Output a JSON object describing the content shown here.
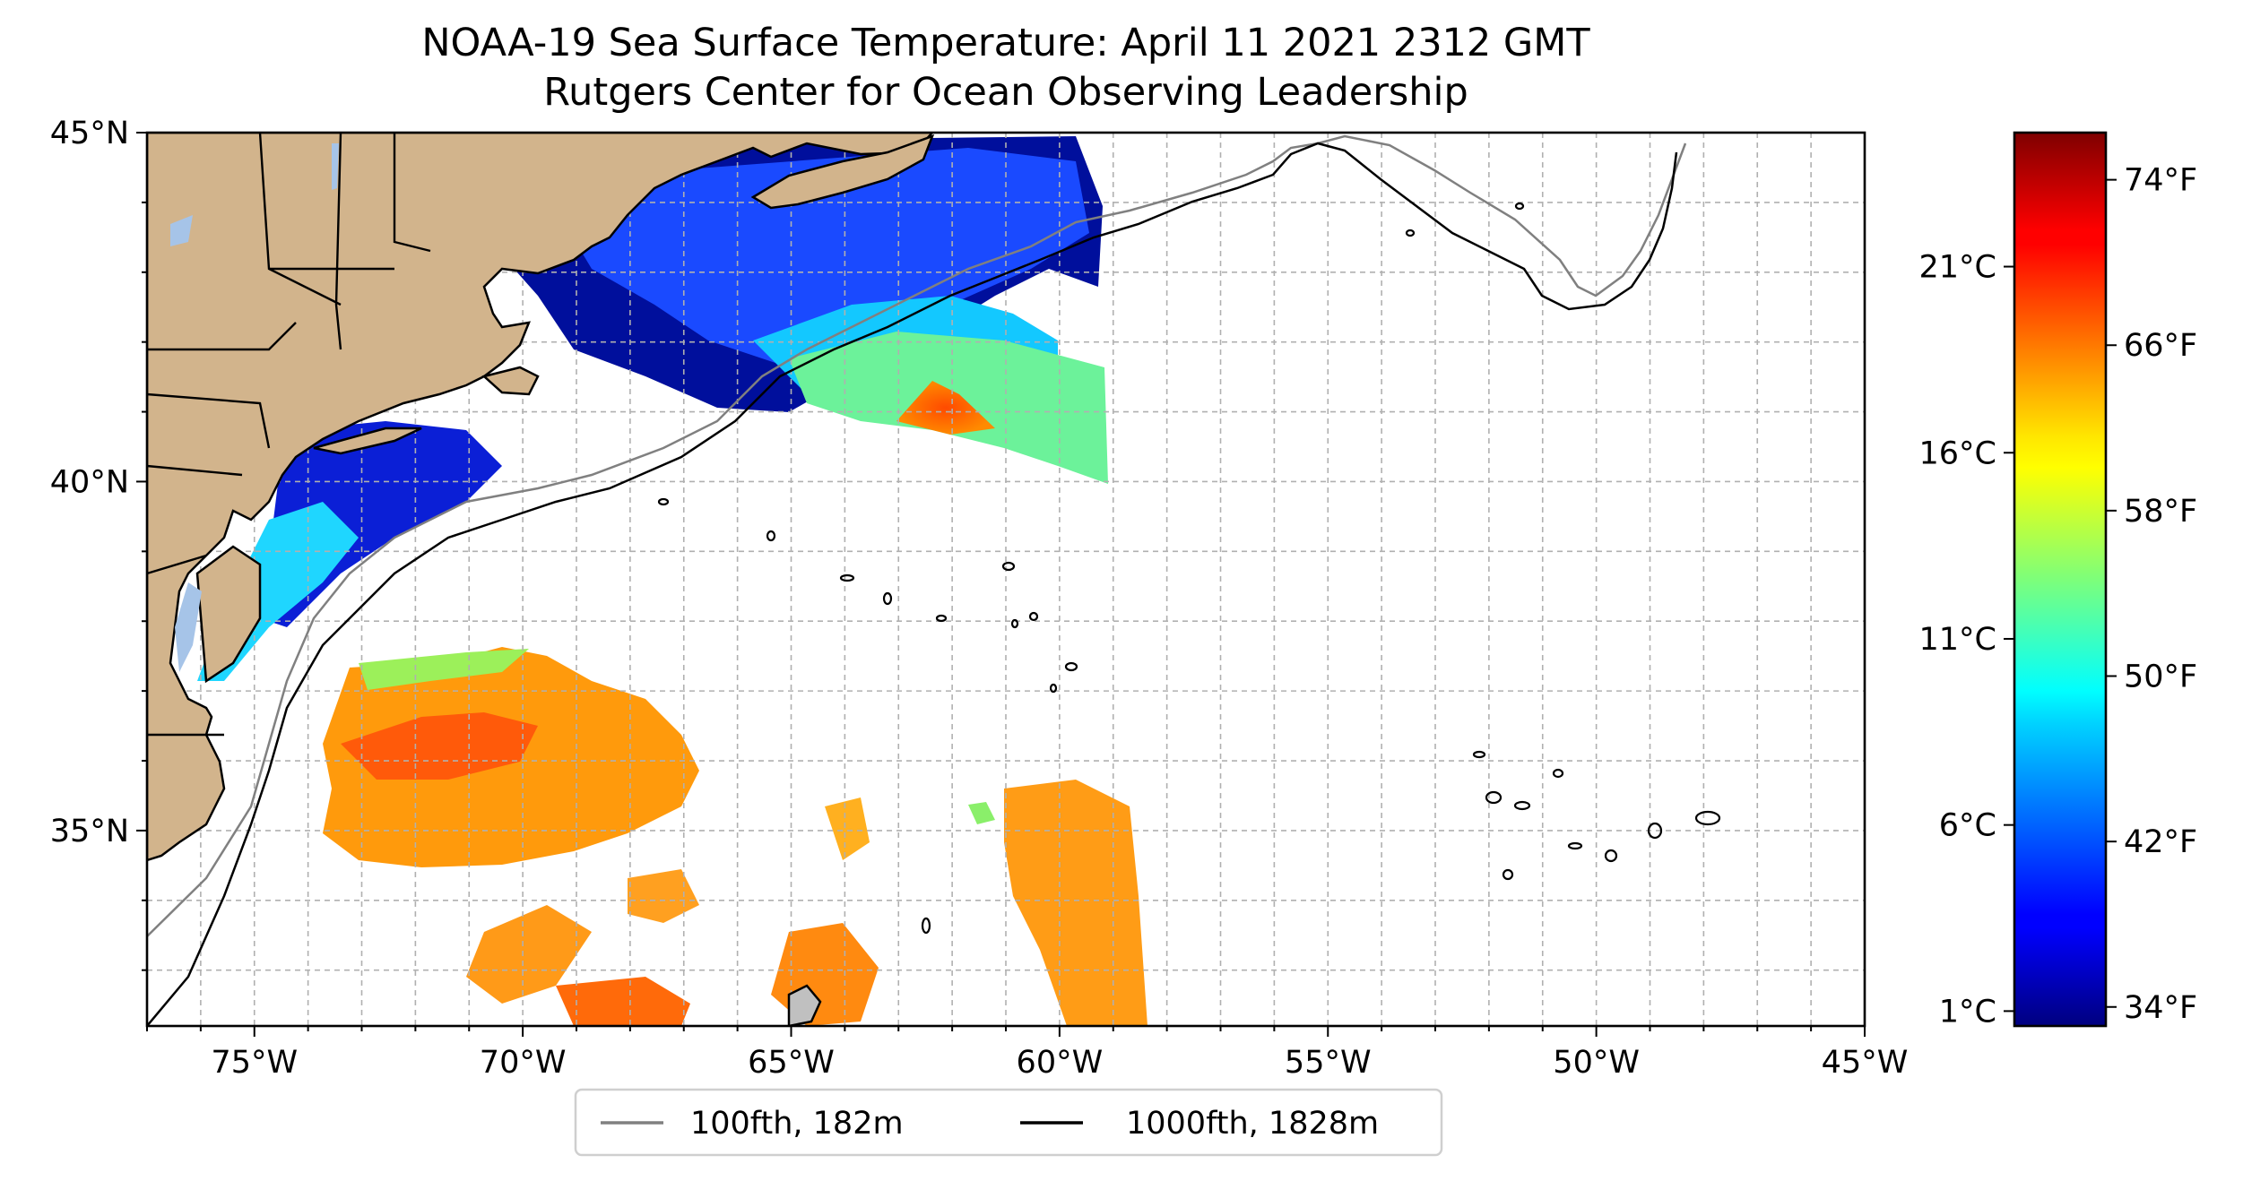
{
  "title": {
    "line1": "NOAA-19 Sea Surface Temperature: April 11 2021 2312 GMT",
    "line2": "Rutgers Center for Ocean Observing Leadership"
  },
  "map": {
    "lon_range": [
      -77,
      -45
    ],
    "lat_range": [
      32.2,
      45
    ],
    "grid": true,
    "gridline_style": "dashed",
    "x_ticks": [
      {
        "lon": -75,
        "label": "75°W"
      },
      {
        "lon": -70,
        "label": "70°W"
      },
      {
        "lon": -65,
        "label": "65°W"
      },
      {
        "lon": -60,
        "label": "60°W"
      },
      {
        "lon": -55,
        "label": "55°W"
      },
      {
        "lon": -50,
        "label": "50°W"
      },
      {
        "lon": -45,
        "label": "45°W"
      }
    ],
    "y_ticks": [
      {
        "lat": 45,
        "label": "45°N"
      },
      {
        "lat": 40,
        "label": "40°N"
      },
      {
        "lat": 35,
        "label": "35°N"
      }
    ],
    "colors": {
      "land": "#d2b48c",
      "lakes": "#a6c4e8",
      "shelf_100fth": "#808080",
      "slope_1000fth": "#000000"
    }
  },
  "legend": {
    "placement": "bottom-center",
    "items": [
      {
        "label": "100fth, 182m",
        "color": "#808080"
      },
      {
        "label": "1000fth, 1828m",
        "color": "#000000"
      }
    ]
  },
  "colorbar": {
    "colormap": "jet",
    "range_c": [
      0.6,
      24.6
    ],
    "celsius_ticks": [
      {
        "value": 1,
        "label": "1°C"
      },
      {
        "value": 6,
        "label": "6°C"
      },
      {
        "value": 11,
        "label": "11°C"
      },
      {
        "value": 16,
        "label": "16°C"
      },
      {
        "value": 21,
        "label": "21°C"
      }
    ],
    "fahrenheit_ticks": [
      {
        "value": 34,
        "label": "34°F"
      },
      {
        "value": 42,
        "label": "42°F"
      },
      {
        "value": 50,
        "label": "50°F"
      },
      {
        "value": 58,
        "label": "58°F"
      },
      {
        "value": 66,
        "label": "66°F"
      },
      {
        "value": 74,
        "label": "74°F"
      }
    ]
  }
}
